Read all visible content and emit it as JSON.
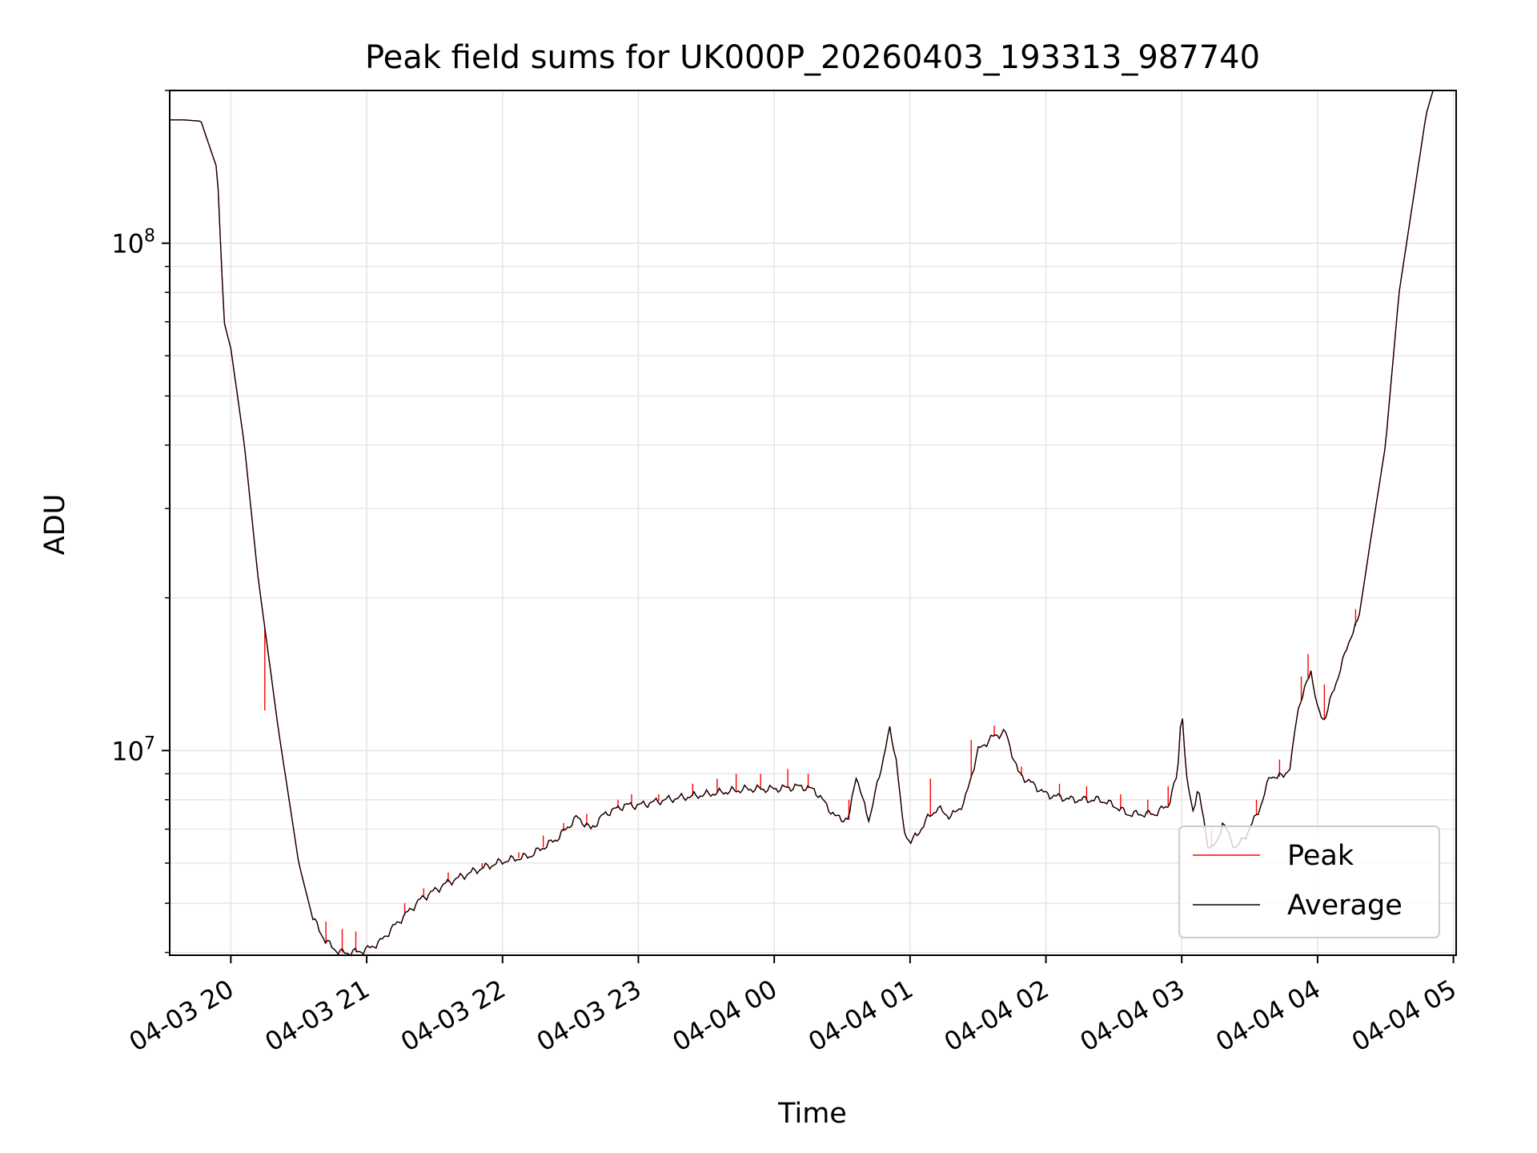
{
  "chart_data": {
    "type": "line",
    "title": "Peak field sums for UK000P_20260403_193313_987740",
    "xlabel": "Time",
    "ylabel": "ADU",
    "yscale": "log",
    "ylim": [
      3950000,
      200000000
    ],
    "xlim_hours": [
      -0.45,
      9.02
    ],
    "x_ticks": [
      {
        "hour": 0,
        "label": "04-03 20"
      },
      {
        "hour": 1,
        "label": "04-03 21"
      },
      {
        "hour": 2,
        "label": "04-03 22"
      },
      {
        "hour": 3,
        "label": "04-03 23"
      },
      {
        "hour": 4,
        "label": "04-04 00"
      },
      {
        "hour": 5,
        "label": "04-04 01"
      },
      {
        "hour": 6,
        "label": "04-04 02"
      },
      {
        "hour": 7,
        "label": "04-04 03"
      },
      {
        "hour": 8,
        "label": "04-04 04"
      },
      {
        "hour": 9,
        "label": "04-04 05"
      }
    ],
    "y_ticks": [
      {
        "value": 10000000,
        "base": "10",
        "exp": "7"
      },
      {
        "value": 100000000,
        "base": "10",
        "exp": "8"
      }
    ],
    "grid": true,
    "legend_position": "lower-right",
    "colors": {
      "peak": "#ff0000",
      "average": "#000000",
      "grid": "#e6e6e6",
      "legend_border": "#cccccc"
    },
    "series": [
      {
        "name": "Average",
        "color": "#000000",
        "hours_since_20": [
          -0.45,
          -0.35,
          -0.22,
          -0.1,
          -0.05,
          0.0,
          0.1,
          0.2,
          0.35,
          0.5,
          0.6,
          0.7,
          0.8,
          0.9,
          1.0,
          1.1,
          1.2,
          1.4,
          1.6,
          1.8,
          2.0,
          2.2,
          2.4,
          2.55,
          2.65,
          2.75,
          2.9,
          3.0,
          3.2,
          3.5,
          3.8,
          4.0,
          4.2,
          4.3,
          4.45,
          4.55,
          4.6,
          4.65,
          4.7,
          4.8,
          4.85,
          4.9,
          4.95,
          5.0,
          5.05,
          5.12,
          5.2,
          5.3,
          5.4,
          5.5,
          5.6,
          5.7,
          5.8,
          5.9,
          6.0,
          6.2,
          6.4,
          6.5,
          6.6,
          6.7,
          6.8,
          6.9,
          6.97,
          7.0,
          7.03,
          7.08,
          7.12,
          7.2,
          7.25,
          7.3,
          7.4,
          7.5,
          7.6,
          7.65,
          7.7,
          7.8,
          7.85,
          7.9,
          7.95,
          8.0,
          8.05,
          8.15,
          8.25,
          8.3,
          8.4,
          8.5,
          8.6,
          8.7,
          8.8,
          8.85
        ],
        "values": [
          175000000,
          175000000,
          174000000,
          140000000,
          70000000,
          62000000,
          40000000,
          22000000,
          11000000,
          6000000,
          4700000,
          4200000,
          4000000,
          4000000,
          4050000,
          4200000,
          4500000,
          5100000,
          5500000,
          5800000,
          6050000,
          6200000,
          6700000,
          7400000,
          7000000,
          7500000,
          7800000,
          7800000,
          8000000,
          8200000,
          8400000,
          8400000,
          8500000,
          8350000,
          7400000,
          7300000,
          9000000,
          8000000,
          7300000,
          9600000,
          11000000,
          9600000,
          7000000,
          6600000,
          6800000,
          7300000,
          7700000,
          7400000,
          7900000,
          10000000,
          10600000,
          10900000,
          9000000,
          8600000,
          8200000,
          8000000,
          8000000,
          7800000,
          7500000,
          7500000,
          7500000,
          7800000,
          9000000,
          12500000,
          9000000,
          7600000,
          8400000,
          6400000,
          6500000,
          7200000,
          6400000,
          7000000,
          8000000,
          9000000,
          8800000,
          9200000,
          12000000,
          13000000,
          14500000,
          12000000,
          11500000,
          14000000,
          17000000,
          18000000,
          27000000,
          40000000,
          80000000,
          120000000,
          180000000,
          200000000
        ]
      },
      {
        "name": "Peak",
        "color": "#ff0000",
        "spikes": [
          {
            "hour": 0.25,
            "value": 12000000
          },
          {
            "hour": 0.7,
            "value": 4600000
          },
          {
            "hour": 0.82,
            "value": 4450000
          },
          {
            "hour": 0.92,
            "value": 4400000
          },
          {
            "hour": 1.28,
            "value": 5000000
          },
          {
            "hour": 1.42,
            "value": 5350000
          },
          {
            "hour": 1.6,
            "value": 5750000
          },
          {
            "hour": 1.85,
            "value": 6000000
          },
          {
            "hour": 2.12,
            "value": 6300000
          },
          {
            "hour": 2.3,
            "value": 6800000
          },
          {
            "hour": 2.45,
            "value": 7200000
          },
          {
            "hour": 2.62,
            "value": 7500000
          },
          {
            "hour": 2.85,
            "value": 8000000
          },
          {
            "hour": 2.95,
            "value": 8200000
          },
          {
            "hour": 3.15,
            "value": 8200000
          },
          {
            "hour": 3.4,
            "value": 8600000
          },
          {
            "hour": 3.58,
            "value": 8800000
          },
          {
            "hour": 3.72,
            "value": 9000000
          },
          {
            "hour": 3.9,
            "value": 9000000
          },
          {
            "hour": 4.1,
            "value": 9200000
          },
          {
            "hour": 4.25,
            "value": 9000000
          },
          {
            "hour": 4.55,
            "value": 8000000
          },
          {
            "hour": 5.15,
            "value": 8800000
          },
          {
            "hour": 5.45,
            "value": 10500000
          },
          {
            "hour": 5.62,
            "value": 11200000
          },
          {
            "hour": 5.82,
            "value": 9300000
          },
          {
            "hour": 6.1,
            "value": 8600000
          },
          {
            "hour": 6.3,
            "value": 8500000
          },
          {
            "hour": 6.55,
            "value": 8200000
          },
          {
            "hour": 6.75,
            "value": 8000000
          },
          {
            "hour": 6.9,
            "value": 8500000
          },
          {
            "hour": 7.22,
            "value": 7000000
          },
          {
            "hour": 7.55,
            "value": 8000000
          },
          {
            "hour": 7.72,
            "value": 9600000
          },
          {
            "hour": 7.88,
            "value": 14000000
          },
          {
            "hour": 7.93,
            "value": 15500000
          },
          {
            "hour": 8.05,
            "value": 13500000
          },
          {
            "hour": 8.28,
            "value": 19000000
          }
        ]
      }
    ]
  }
}
